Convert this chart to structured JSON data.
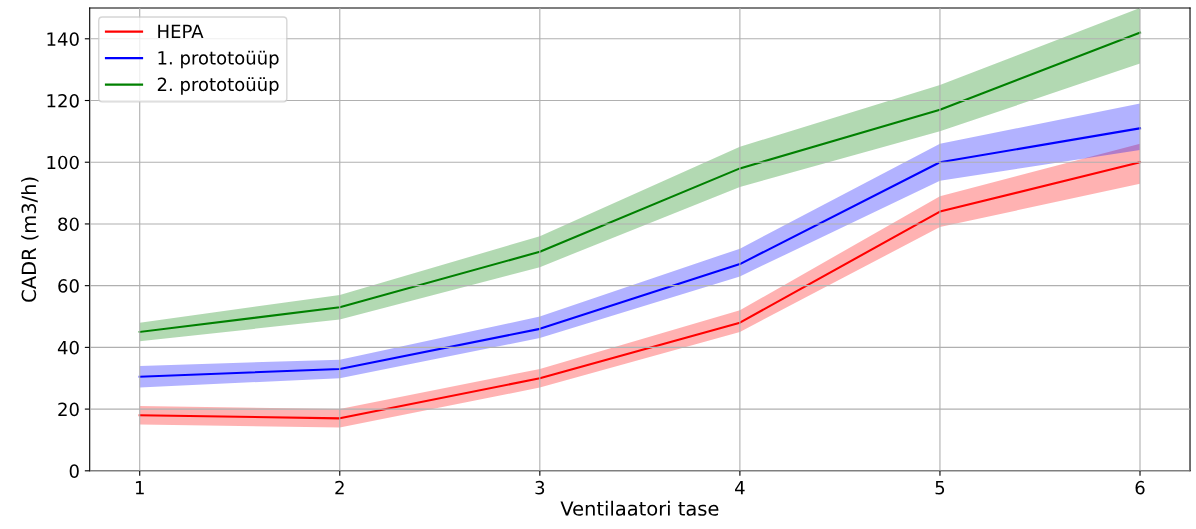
{
  "chart_data": {
    "type": "line",
    "xlabel": "Ventilaatori tase",
    "ylabel": "CADR (m3/h)",
    "x": [
      1,
      2,
      3,
      4,
      5,
      6
    ],
    "series": [
      {
        "name": "HEPA",
        "color": "#ff0000",
        "values": [
          18,
          17,
          30,
          48,
          84,
          100
        ],
        "lower": [
          15,
          14,
          27,
          45,
          79,
          93
        ],
        "upper": [
          21,
          20,
          33,
          52,
          89,
          106
        ]
      },
      {
        "name": "1. prototoüüp",
        "color": "#0000ff",
        "values": [
          30.5,
          33,
          46,
          67,
          100,
          111
        ],
        "lower": [
          27,
          30,
          43,
          63,
          94,
          104
        ],
        "upper": [
          34,
          36,
          50,
          72,
          106,
          119
        ]
      },
      {
        "name": "2. prototoüüp",
        "color": "#008000",
        "values": [
          45,
          53,
          71,
          98,
          117,
          142
        ],
        "lower": [
          42,
          49,
          66,
          92,
          110,
          132
        ],
        "upper": [
          48,
          57,
          76,
          105,
          125,
          150
        ]
      }
    ],
    "xlim": [
      0.75,
      6.25
    ],
    "xticks": [
      1,
      2,
      3,
      4,
      5,
      6
    ],
    "ylim": [
      0,
      150
    ],
    "yticks": [
      0,
      20,
      40,
      60,
      80,
      100,
      120,
      140
    ],
    "grid": true,
    "legend": "top left",
    "marker": "none",
    "line_style": "solid"
  }
}
